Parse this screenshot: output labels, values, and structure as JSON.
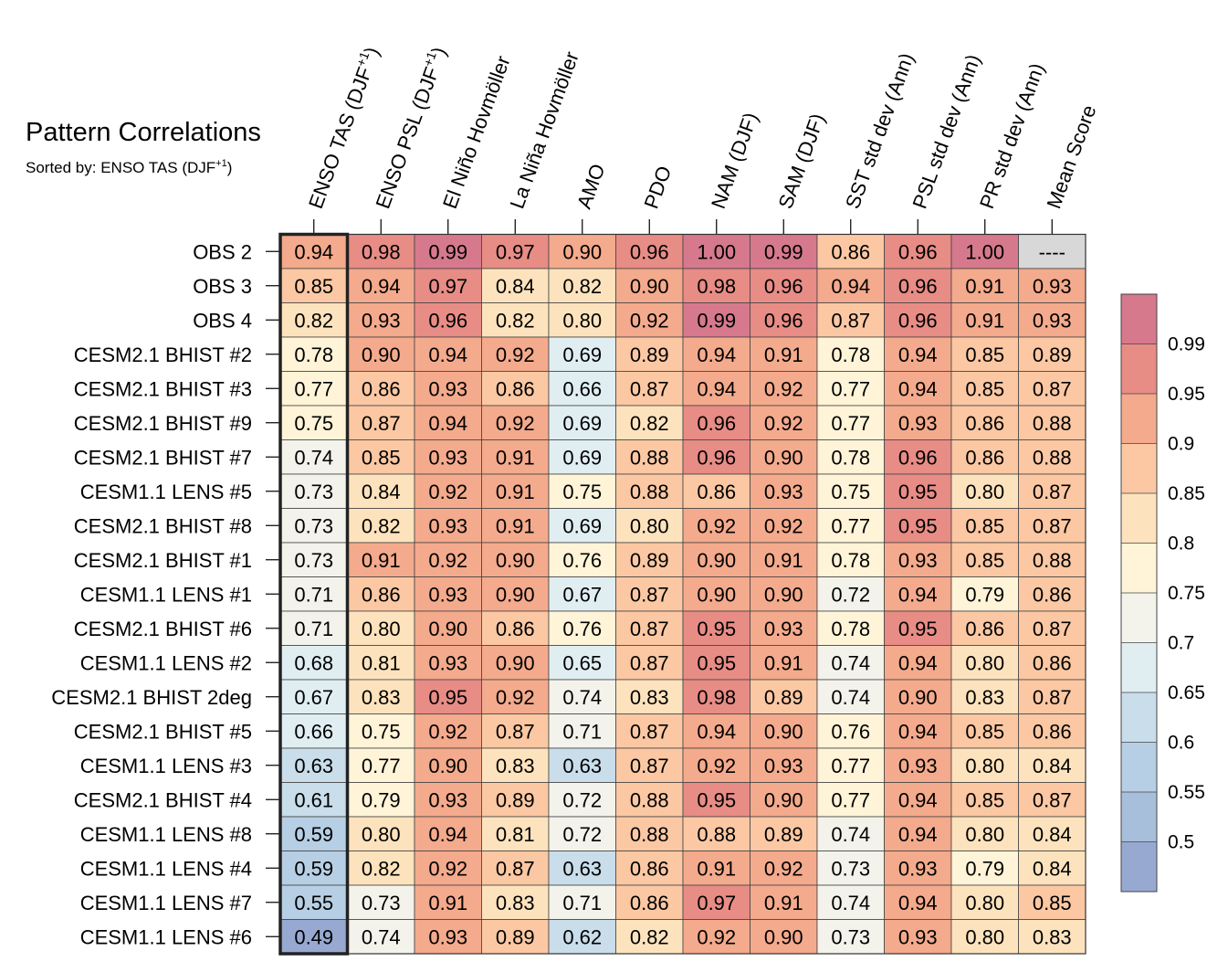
{
  "chart_data": {
    "type": "heatmap",
    "title": "Pattern Correlations",
    "subtitle": "Sorted by: ENSO TAS (DJF",
    "subtitle_sup": "+1",
    "subtitle_end": ")",
    "columns": [
      {
        "label": "ENSO TAS (DJF",
        "sup": "+1",
        "end": ")"
      },
      {
        "label": "ENSO PSL (DJF",
        "sup": "+1",
        "end": ")"
      },
      {
        "label": "El Niño Hovmöller"
      },
      {
        "label": "La Niña Hovmöller"
      },
      {
        "label": "AMO"
      },
      {
        "label": "PDO"
      },
      {
        "label": "NAM (DJF)"
      },
      {
        "label": "SAM (DJF)"
      },
      {
        "label": "SST std dev (Ann)"
      },
      {
        "label": "PSL std dev (Ann)"
      },
      {
        "label": "PR std dev (Ann)"
      },
      {
        "label": "Mean Score"
      }
    ],
    "rows": [
      "OBS 2",
      "OBS 3",
      "OBS 4",
      "CESM2.1 BHIST #2",
      "CESM2.1 BHIST #3",
      "CESM2.1 BHIST #9",
      "CESM2.1 BHIST #7",
      "CESM1.1 LENS #5",
      "CESM2.1 BHIST #8",
      "CESM2.1 BHIST #1",
      "CESM1.1 LENS #1",
      "CESM2.1 BHIST #6",
      "CESM1.1 LENS #2",
      "CESM2.1 BHIST 2deg",
      "CESM2.1 BHIST #5",
      "CESM1.1 LENS #3",
      "CESM2.1 BHIST #4",
      "CESM1.1 LENS #8",
      "CESM1.1 LENS #4",
      "CESM1.1 LENS #7",
      "CESM1.1 LENS #6"
    ],
    "values": [
      [
        "0.94",
        "0.98",
        "0.99",
        "0.97",
        "0.90",
        "0.96",
        "1.00",
        "0.99",
        "0.86",
        "0.96",
        "1.00",
        "----"
      ],
      [
        "0.85",
        "0.94",
        "0.97",
        "0.84",
        "0.82",
        "0.90",
        "0.98",
        "0.96",
        "0.94",
        "0.96",
        "0.91",
        "0.93"
      ],
      [
        "0.82",
        "0.93",
        "0.96",
        "0.82",
        "0.80",
        "0.92",
        "0.99",
        "0.96",
        "0.87",
        "0.96",
        "0.91",
        "0.93"
      ],
      [
        "0.78",
        "0.90",
        "0.94",
        "0.92",
        "0.69",
        "0.89",
        "0.94",
        "0.91",
        "0.78",
        "0.94",
        "0.85",
        "0.89"
      ],
      [
        "0.77",
        "0.86",
        "0.93",
        "0.86",
        "0.66",
        "0.87",
        "0.94",
        "0.92",
        "0.77",
        "0.94",
        "0.85",
        "0.87"
      ],
      [
        "0.75",
        "0.87",
        "0.94",
        "0.92",
        "0.69",
        "0.82",
        "0.96",
        "0.92",
        "0.77",
        "0.93",
        "0.86",
        "0.88"
      ],
      [
        "0.74",
        "0.85",
        "0.93",
        "0.91",
        "0.69",
        "0.88",
        "0.96",
        "0.90",
        "0.78",
        "0.96",
        "0.86",
        "0.88"
      ],
      [
        "0.73",
        "0.84",
        "0.92",
        "0.91",
        "0.75",
        "0.88",
        "0.86",
        "0.93",
        "0.75",
        "0.95",
        "0.80",
        "0.87"
      ],
      [
        "0.73",
        "0.82",
        "0.93",
        "0.91",
        "0.69",
        "0.80",
        "0.92",
        "0.92",
        "0.77",
        "0.95",
        "0.85",
        "0.87"
      ],
      [
        "0.73",
        "0.91",
        "0.92",
        "0.90",
        "0.76",
        "0.89",
        "0.90",
        "0.91",
        "0.78",
        "0.93",
        "0.85",
        "0.88"
      ],
      [
        "0.71",
        "0.86",
        "0.93",
        "0.90",
        "0.67",
        "0.87",
        "0.90",
        "0.90",
        "0.72",
        "0.94",
        "0.79",
        "0.86"
      ],
      [
        "0.71",
        "0.80",
        "0.90",
        "0.86",
        "0.76",
        "0.87",
        "0.95",
        "0.93",
        "0.78",
        "0.95",
        "0.86",
        "0.87"
      ],
      [
        "0.68",
        "0.81",
        "0.93",
        "0.90",
        "0.65",
        "0.87",
        "0.95",
        "0.91",
        "0.74",
        "0.94",
        "0.80",
        "0.86"
      ],
      [
        "0.67",
        "0.83",
        "0.95",
        "0.92",
        "0.74",
        "0.83",
        "0.98",
        "0.89",
        "0.74",
        "0.90",
        "0.83",
        "0.87"
      ],
      [
        "0.66",
        "0.75",
        "0.92",
        "0.87",
        "0.71",
        "0.87",
        "0.94",
        "0.90",
        "0.76",
        "0.94",
        "0.85",
        "0.86"
      ],
      [
        "0.63",
        "0.77",
        "0.90",
        "0.83",
        "0.63",
        "0.87",
        "0.92",
        "0.93",
        "0.77",
        "0.93",
        "0.80",
        "0.84"
      ],
      [
        "0.61",
        "0.79",
        "0.93",
        "0.89",
        "0.72",
        "0.88",
        "0.95",
        "0.90",
        "0.77",
        "0.94",
        "0.85",
        "0.87"
      ],
      [
        "0.59",
        "0.80",
        "0.94",
        "0.81",
        "0.72",
        "0.88",
        "0.88",
        "0.89",
        "0.74",
        "0.94",
        "0.80",
        "0.84"
      ],
      [
        "0.59",
        "0.82",
        "0.92",
        "0.87",
        "0.63",
        "0.86",
        "0.91",
        "0.92",
        "0.73",
        "0.93",
        "0.79",
        "0.84"
      ],
      [
        "0.55",
        "0.73",
        "0.91",
        "0.83",
        "0.71",
        "0.86",
        "0.97",
        "0.91",
        "0.74",
        "0.94",
        "0.80",
        "0.85"
      ],
      [
        "0.49",
        "0.74",
        "0.93",
        "0.89",
        "0.62",
        "0.82",
        "0.92",
        "0.90",
        "0.73",
        "0.93",
        "0.80",
        "0.83"
      ]
    ],
    "colorbar": {
      "levels": [
        0.5,
        0.55,
        0.6,
        0.65,
        0.7,
        0.75,
        0.8,
        0.85,
        0.9,
        0.95,
        0.99
      ],
      "tick_labels": [
        "0.5",
        "0.55",
        "0.6",
        "0.65",
        "0.7",
        "0.75",
        "0.8",
        "0.85",
        "0.9",
        "0.95",
        "0.99"
      ],
      "colors": [
        "#98a9d1",
        "#a8bfdc",
        "#b7cfe4",
        "#c9ddea",
        "#e0eef2",
        "#f3f3ec",
        "#fff4d8",
        "#fde3bd",
        "#fbc8a3",
        "#f4aa8c",
        "#e88c86",
        "#d6798d"
      ],
      "missing_color": "#d8d8d8"
    },
    "sorted_column": 0
  }
}
